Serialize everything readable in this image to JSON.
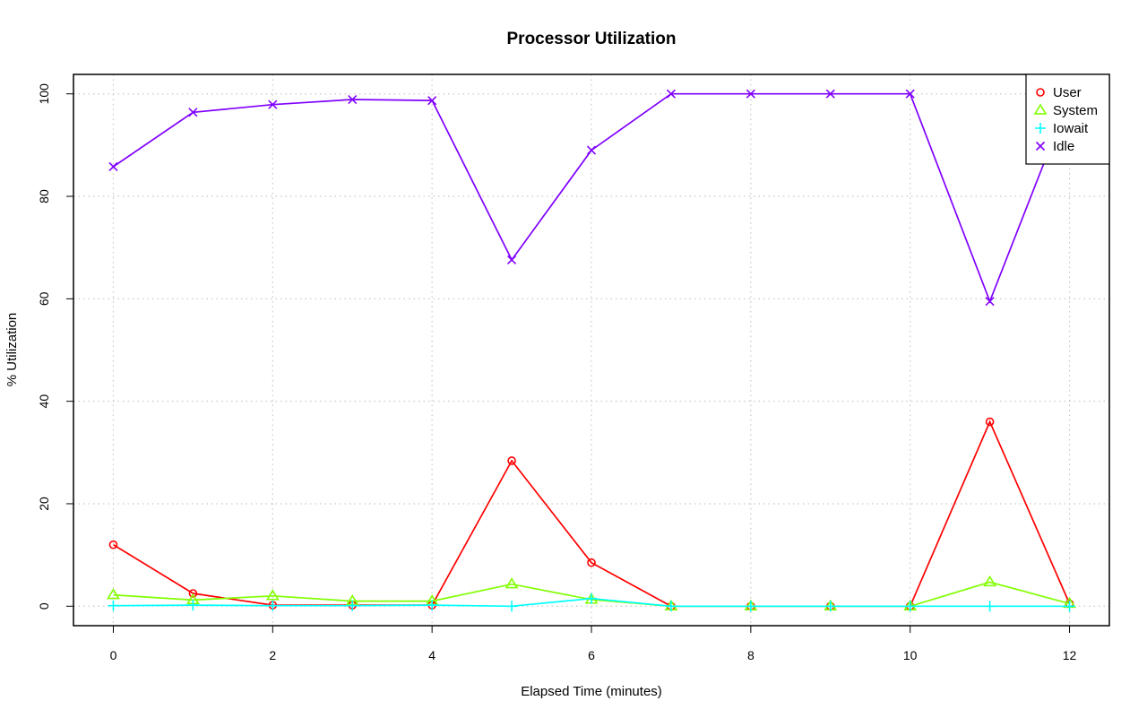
{
  "chart_data": {
    "type": "line",
    "title": "Processor Utilization",
    "xlabel": "Elapsed Time (minutes)",
    "ylabel": "% Utilization",
    "xlim": [
      -0.5,
      12.5
    ],
    "ylim": [
      -3.8,
      103.8
    ],
    "x_ticks": [
      0,
      2,
      4,
      6,
      8,
      10,
      12
    ],
    "y_ticks": [
      0,
      20,
      40,
      60,
      80,
      100
    ],
    "grid": true,
    "legend_position": "top-right",
    "x": [
      0,
      1,
      2,
      3,
      4,
      5,
      6,
      7,
      8,
      9,
      10,
      11,
      12
    ],
    "series": [
      {
        "name": "User",
        "color": "#ff0000",
        "marker": "circle",
        "values": [
          12,
          2.5,
          0.2,
          0.2,
          0.2,
          28.4,
          8.5,
          0,
          0,
          0,
          0,
          36,
          0.5
        ]
      },
      {
        "name": "System",
        "color": "#80ff00",
        "marker": "triangle",
        "values": [
          2.2,
          1.2,
          2,
          1,
          1,
          4.3,
          1.3,
          0,
          0,
          0,
          0,
          4.7,
          0.5
        ]
      },
      {
        "name": "Iowait",
        "color": "#00ffff",
        "marker": "plus",
        "values": [
          0.1,
          0.2,
          0.1,
          0.1,
          0.2,
          0,
          1.5,
          0,
          0,
          0,
          0,
          0,
          0
        ]
      },
      {
        "name": "Idle",
        "color": "#8000ff",
        "marker": "cross",
        "values": [
          85.8,
          96.4,
          97.9,
          98.9,
          98.7,
          67.6,
          89,
          100,
          100,
          100,
          100,
          59.5,
          99.2
        ]
      }
    ]
  }
}
